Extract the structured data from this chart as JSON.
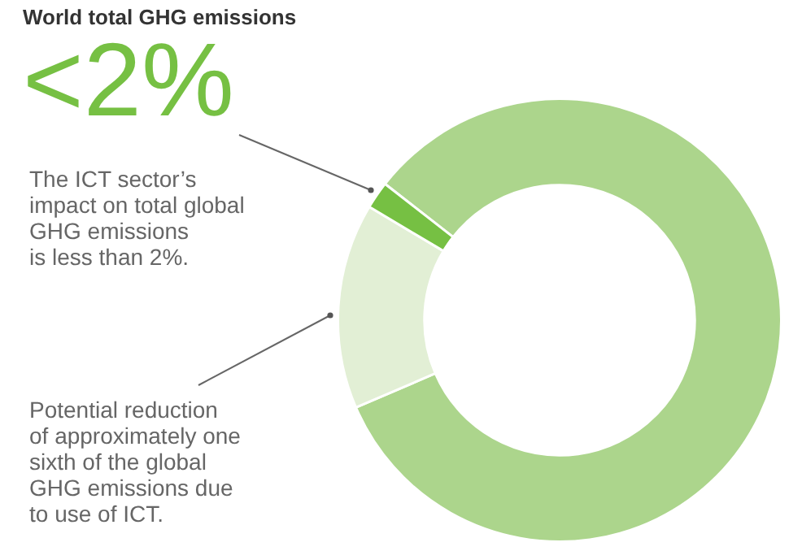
{
  "chart_data": {
    "type": "donut",
    "title": "World total GHG emissions",
    "categories": [
      null,
      null,
      null
    ],
    "values": [
      83,
      15,
      2
    ],
    "colors": [
      "#acd58c",
      "#e2efd5",
      "#76c043"
    ],
    "annotations": [
      "<2%",
      "The ICT sector’s\nimpact on total global\nGHG emissions\nis less than 2%.",
      "Potential reduction\nof approximately one\nsixth of the global\nGHG emissions due\nto use of ICT."
    ],
    "legend": false
  }
}
